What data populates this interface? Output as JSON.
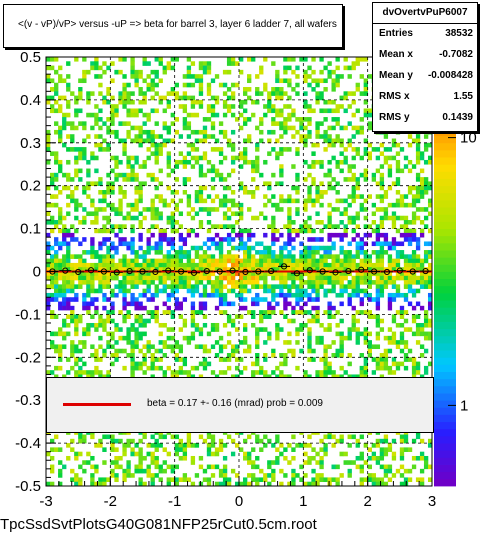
{
  "title": "<(v - vP)/vP> versus  -uP => beta for barrel 3, layer 6 ladder 7, all wafers",
  "stats": {
    "name": "dvOvertvPuP6007",
    "rows": [
      {
        "label": "Entries",
        "value": "38532"
      },
      {
        "label": "Mean x",
        "value": "-0.7082"
      },
      {
        "label": "Mean y",
        "value": "-0.008428"
      },
      {
        "label": "RMS x",
        "value": "1.55"
      },
      {
        "label": "RMS y",
        "value": "0.1439"
      }
    ]
  },
  "legend": {
    "text": "beta =     0.17 +-   0.16 (mrad) prob = 0.009",
    "line_color": "#dd0000"
  },
  "footer": "TpcSsdSvtPlotsG40G081NFP25rCut0.5cm.root",
  "chart_data": {
    "type": "heatmap",
    "xlim": [
      -3,
      3
    ],
    "ylim": [
      -0.5,
      0.5
    ],
    "x_ticks": [
      "-3",
      "-2",
      "-1",
      "0",
      "1",
      "2",
      "3"
    ],
    "y_ticks": [
      "-0.5",
      "-0.4",
      "-0.3",
      "-0.2",
      "-0.1",
      "0",
      "0.1",
      "0.2",
      "0.3",
      "0.4",
      "0.5"
    ],
    "z_scale": "log",
    "z_ticks": [
      "1",
      "10"
    ],
    "z_tick_values": [
      1,
      10
    ],
    "zlim": [
      0.5,
      20
    ],
    "grid": true,
    "density": {
      "center_y": 0.0,
      "width_y": 0.05,
      "peak_x": -0.1
    },
    "profile": {
      "x": [
        -2.9,
        -2.7,
        -2.5,
        -2.3,
        -2.1,
        -1.9,
        -1.7,
        -1.5,
        -1.3,
        -1.1,
        -0.9,
        -0.7,
        -0.5,
        -0.3,
        -0.1,
        0.1,
        0.3,
        0.5,
        0.7,
        0.9,
        1.1,
        1.3,
        1.5,
        1.7,
        1.9,
        2.1,
        2.3,
        2.5,
        2.7,
        2.9
      ],
      "y": [
        0.0,
        0.002,
        -0.001,
        0.003,
        0.0,
        -0.002,
        0.001,
        0.0,
        -0.001,
        0.002,
        0.0,
        -0.003,
        0.001,
        0.0,
        0.002,
        -0.001,
        0.0,
        0.001,
        0.012,
        -0.004,
        0.003,
        0.0,
        -0.002,
        0.001,
        0.004,
        0.0,
        -0.001,
        0.002,
        0.0,
        0.001
      ]
    },
    "fit_line": {
      "x": [
        -3,
        3
      ],
      "y": [
        0.0,
        0.0
      ],
      "color": "#dd0000"
    }
  }
}
